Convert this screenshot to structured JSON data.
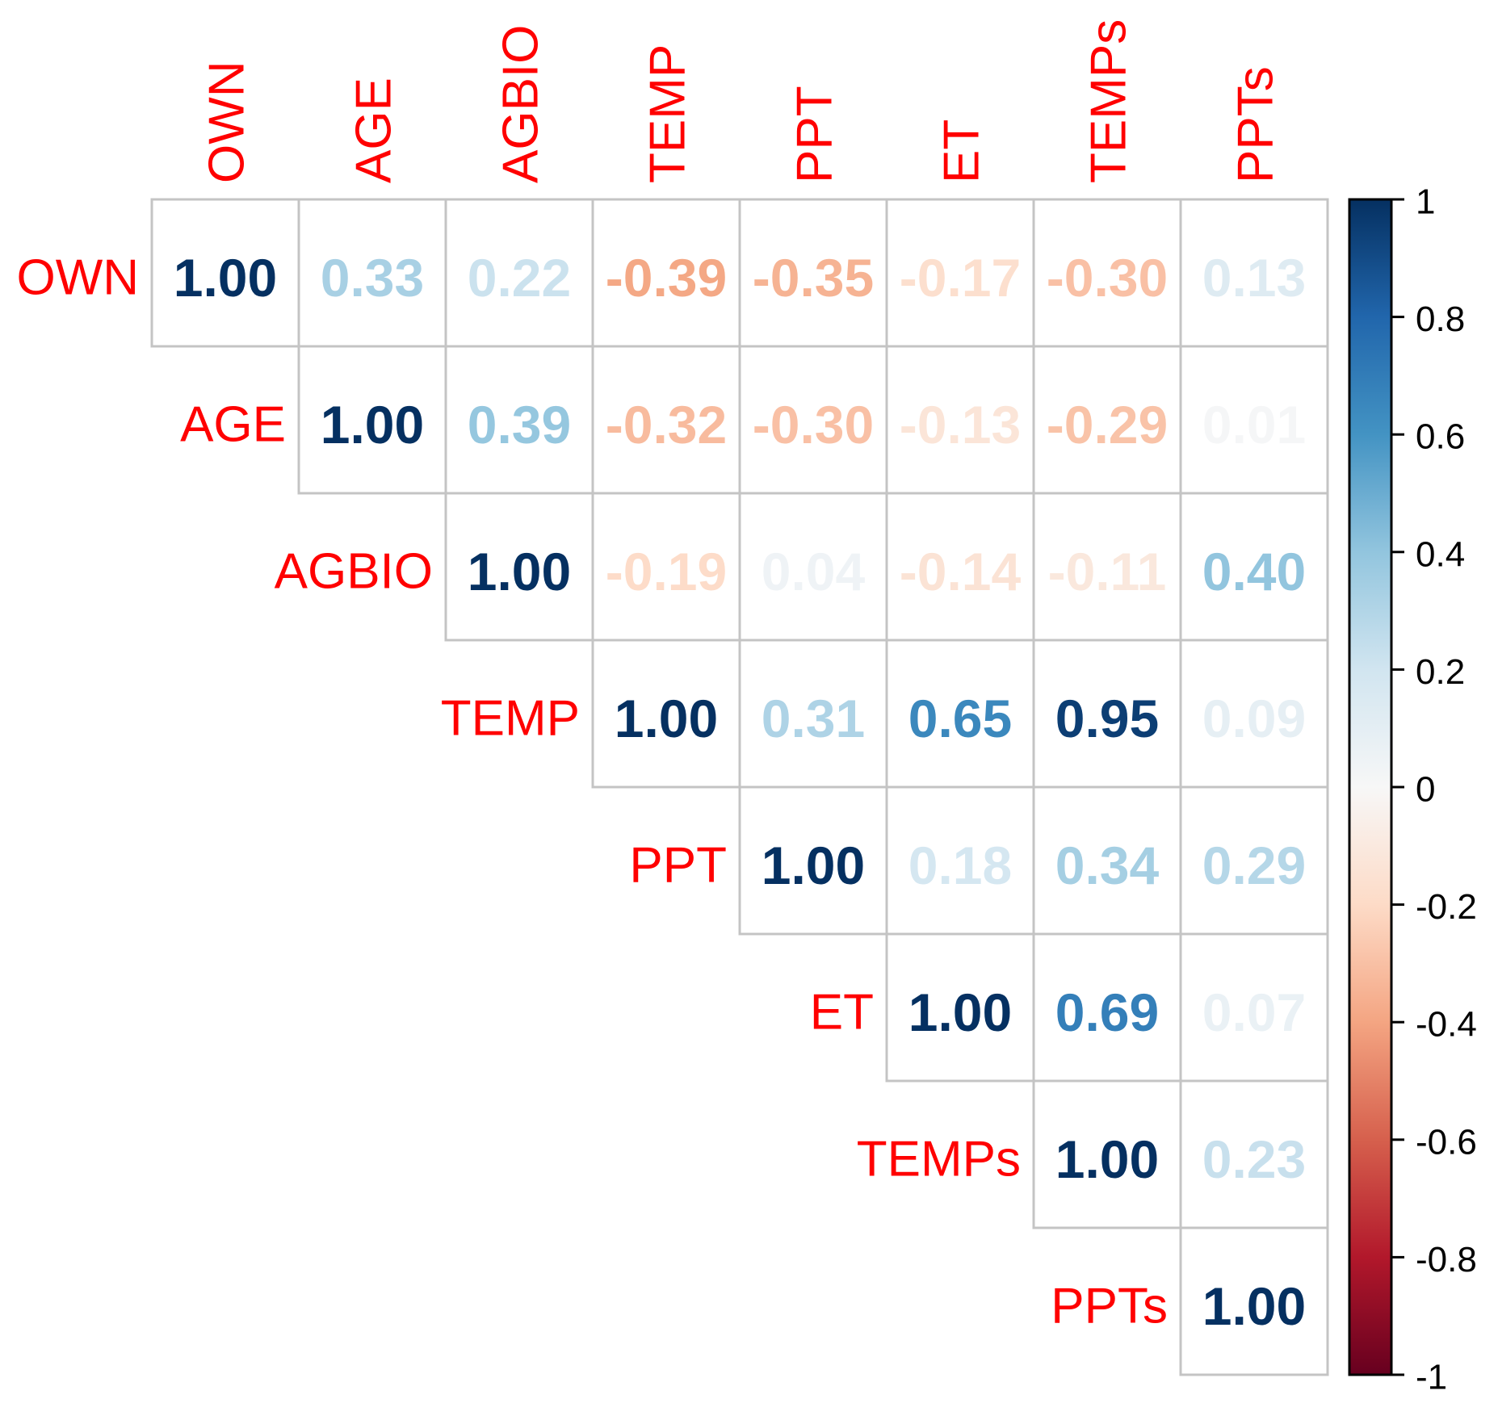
{
  "chart_data": {
    "type": "heatmap",
    "subtype": "correlation-matrix-upper-triangle-with-numbers",
    "title": "",
    "variables": [
      "OWN",
      "AGE",
      "AGBIO",
      "TEMP",
      "PPT",
      "ET",
      "TEMPs",
      "PPTs"
    ],
    "matrix": [
      [
        1.0,
        0.33,
        0.22,
        -0.39,
        -0.35,
        -0.17,
        -0.3,
        0.13
      ],
      [
        null,
        1.0,
        0.39,
        -0.32,
        -0.3,
        -0.13,
        -0.29,
        0.01
      ],
      [
        null,
        null,
        1.0,
        -0.19,
        0.04,
        -0.14,
        -0.11,
        0.4
      ],
      [
        null,
        null,
        null,
        1.0,
        0.31,
        0.65,
        0.95,
        0.09
      ],
      [
        null,
        null,
        null,
        null,
        1.0,
        0.18,
        0.34,
        0.29
      ],
      [
        null,
        null,
        null,
        null,
        null,
        1.0,
        0.69,
        0.07
      ],
      [
        null,
        null,
        null,
        null,
        null,
        null,
        1.0,
        0.23
      ],
      [
        null,
        null,
        null,
        null,
        null,
        null,
        null,
        1.0
      ]
    ],
    "value_decimals": 2,
    "grid_on": true,
    "legend_position": "right",
    "colorbar": {
      "range": [
        -1,
        1
      ],
      "ticks": [
        1,
        0.8,
        0.6,
        0.4,
        0.2,
        0,
        -0.2,
        -0.4,
        -0.6,
        -0.8,
        -1
      ],
      "tick_labels": [
        "1",
        "0.8",
        "0.6",
        "0.4",
        "0.2",
        "0",
        "-0.2",
        "-0.4",
        "-0.6",
        "-0.8",
        "-1"
      ]
    },
    "palette_rdbu_stops": [
      "#67001F",
      "#B2182B",
      "#D6604D",
      "#F4A582",
      "#FDDBC7",
      "#F7F7F7",
      "#D1E5F0",
      "#92C5DE",
      "#4393C3",
      "#2166AC",
      "#053061"
    ],
    "colors": {
      "variable_label": "#FF0000",
      "grid_line": "#C4C4C4",
      "colorbar_border": "#000000",
      "colorbar_tick_label": "#000000",
      "background": "#FFFFFF"
    }
  }
}
